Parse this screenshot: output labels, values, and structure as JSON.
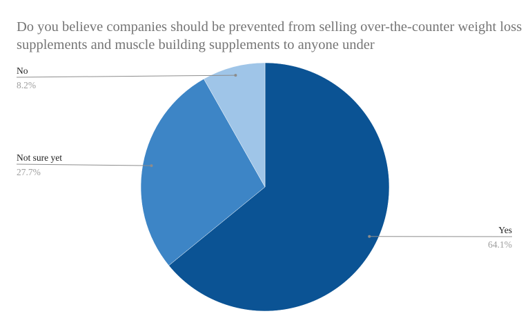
{
  "chart_data": {
    "type": "pie",
    "title": "Do you believe companies should be prevented from selling over-the-counter weight loss supplements and muscle building supplements to anyone under",
    "slices": [
      {
        "label": "Yes",
        "value": 64.1,
        "display": "64.1%",
        "color": "#0b5394"
      },
      {
        "label": "Not sure yet",
        "value": 27.7,
        "display": "27.7%",
        "color": "#3d85c6"
      },
      {
        "label": "No",
        "value": 8.2,
        "display": "8.2%",
        "color": "#9fc5e8"
      }
    ],
    "start": "12 o'clock",
    "direction": "clockwise",
    "legend": "none",
    "labels": "outside with leader lines"
  }
}
